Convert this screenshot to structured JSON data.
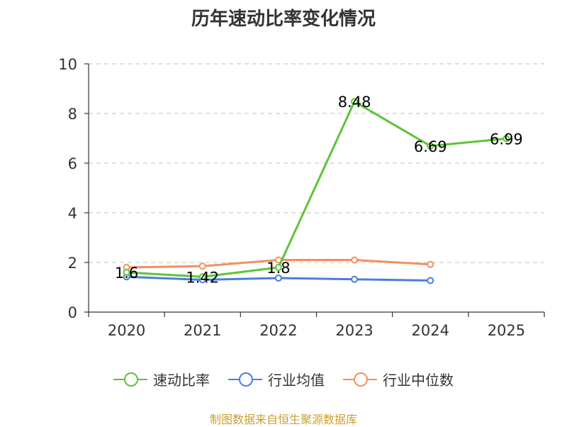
{
  "title": "历年速动比率变化情况",
  "source": "制图数据来自恒生聚源数据库",
  "colors": {
    "速动比率": "#5cc43a",
    "行业均值": "#4a7fdb",
    "行业中位数": "#f39060",
    "axis": "#333333",
    "grid": "#cccccc"
  },
  "legend_icons": [
    "circle-line-marker",
    "circle-line-marker",
    "circle-line-marker"
  ],
  "chart_data": {
    "type": "line",
    "title": "历年速动比率变化情况",
    "categories": [
      "2020",
      "2021",
      "2022",
      "2023",
      "2024",
      "2025"
    ],
    "ylim": [
      0,
      10
    ],
    "yticks": [
      "0",
      "2",
      "4",
      "6",
      "8",
      "10"
    ],
    "grid": true,
    "legend_position": "bottom",
    "series": [
      {
        "name": "速动比率",
        "values": [
          1.6,
          1.42,
          1.8,
          8.48,
          6.69,
          6.99
        ],
        "labels": [
          "1.6",
          "1.42",
          "1.8",
          "8.48",
          "6.69",
          "6.99"
        ]
      },
      {
        "name": "行业均值",
        "values": [
          1.42,
          1.3,
          1.37,
          1.32,
          1.27,
          null
        ]
      },
      {
        "name": "行业中位数",
        "values": [
          1.8,
          1.85,
          2.1,
          2.1,
          1.92,
          null
        ]
      }
    ]
  }
}
